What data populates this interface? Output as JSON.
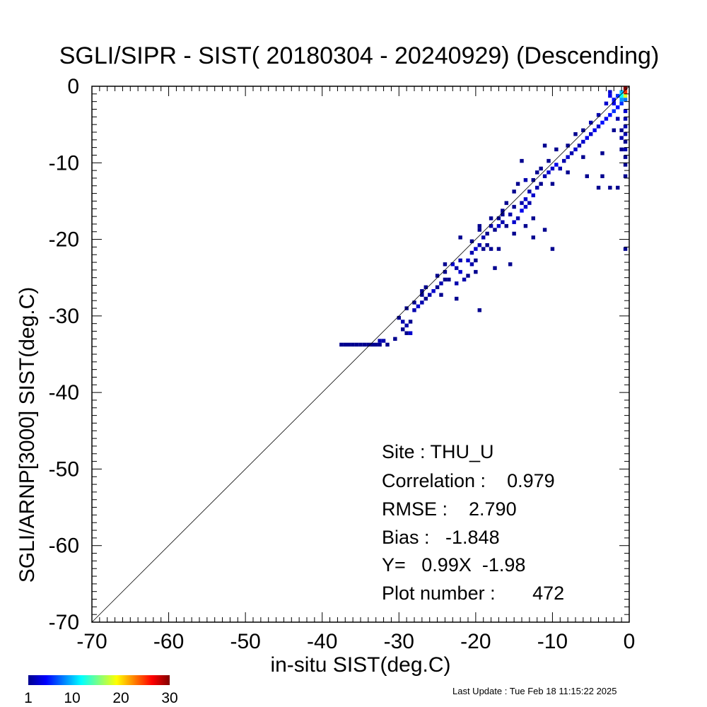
{
  "chart_data": {
    "type": "heatmap",
    "title": "SGLI/SIPR - SIST( 20180304 - 20240929) (Descending)",
    "xlabel": "in-situ SIST(deg.C)",
    "ylabel": "SGLI/ARNP[3000]    SIST(deg.C)",
    "xlim": [
      -70,
      0
    ],
    "ylim": [
      -70,
      0
    ],
    "x_ticks": [
      "-70",
      "-60",
      "-50",
      "-40",
      "-30",
      "-20",
      "-10",
      "0"
    ],
    "y_ticks": [
      "-70",
      "-60",
      "-50",
      "-40",
      "-30",
      "-20",
      "-10",
      "0"
    ],
    "reference_line": {
      "from": [
        -70,
        -70
      ],
      "to": [
        0,
        0
      ]
    },
    "colorbar": {
      "min": 1,
      "max": 30,
      "ticks": [
        "1",
        "10",
        "20",
        "30"
      ],
      "colors": [
        "#00008f",
        "#0000ff",
        "#0080ff",
        "#00ffff",
        "#80ff80",
        "#ffff00",
        "#ff8000",
        "#ff0000",
        "#800000"
      ]
    },
    "bin_size": 0.5,
    "cells": [
      [
        -37.5,
        -33.75,
        1
      ],
      [
        -37,
        -33.75,
        1
      ],
      [
        -36.5,
        -33.75,
        1
      ],
      [
        -36,
        -33.75,
        1
      ],
      [
        -35.5,
        -33.75,
        1
      ],
      [
        -35,
        -33.75,
        1
      ],
      [
        -34.5,
        -33.75,
        1
      ],
      [
        -34,
        -33.75,
        1
      ],
      [
        -33.5,
        -33.75,
        1
      ],
      [
        -33,
        -33.75,
        1
      ],
      [
        -32.5,
        -33.75,
        1
      ],
      [
        -32.5,
        -33.25,
        2
      ],
      [
        -32,
        -33.25,
        2
      ],
      [
        -31.5,
        -33.75,
        1
      ],
      [
        -30.5,
        -33,
        1
      ],
      [
        -30,
        -30.25,
        1
      ],
      [
        -29.5,
        -30.75,
        2
      ],
      [
        -29.5,
        -31.75,
        1
      ],
      [
        -29,
        -32.25,
        1
      ],
      [
        -28.5,
        -32.25,
        3
      ],
      [
        -29,
        -31.25,
        2
      ],
      [
        -28.5,
        -30.75,
        1
      ],
      [
        -29,
        -29,
        1
      ],
      [
        -28,
        -29.25,
        2
      ],
      [
        -27.5,
        -28.75,
        3
      ],
      [
        -27,
        -28.25,
        2
      ],
      [
        -26.5,
        -27.75,
        1
      ],
      [
        -27,
        -27.25,
        1
      ],
      [
        -26,
        -27.25,
        2
      ],
      [
        -25.5,
        -26.75,
        3
      ],
      [
        -25,
        -26.25,
        1
      ],
      [
        -28,
        -28.25,
        1
      ],
      [
        -27,
        -26.75,
        1
      ],
      [
        -26.5,
        -26.25,
        1
      ],
      [
        -24.5,
        -25.75,
        2
      ],
      [
        -24,
        -25.25,
        1
      ],
      [
        -25,
        -24.75,
        1
      ],
      [
        -24,
        -24.25,
        1
      ],
      [
        -23,
        -23.25,
        3
      ],
      [
        -22.5,
        -23.75,
        2
      ],
      [
        -22,
        -24.25,
        3
      ],
      [
        -21.5,
        -25.25,
        2
      ],
      [
        -21,
        -24.75,
        1
      ],
      [
        -22.5,
        -25.75,
        2
      ],
      [
        -23.5,
        -25.25,
        1
      ],
      [
        -22,
        -22.75,
        2
      ],
      [
        -21,
        -22.75,
        3
      ],
      [
        -20.5,
        -23.25,
        2
      ],
      [
        -20,
        -24.25,
        1
      ],
      [
        -20.5,
        -21.75,
        2
      ],
      [
        -20,
        -21.25,
        3
      ],
      [
        -19.5,
        -20.75,
        2
      ],
      [
        -19,
        -21.25,
        1
      ],
      [
        -18.5,
        -20.75,
        1
      ],
      [
        -20.5,
        -20.25,
        1
      ],
      [
        -19,
        -19.75,
        2
      ],
      [
        -18.5,
        -19.25,
        1
      ],
      [
        -19.5,
        -18.75,
        1
      ],
      [
        -18,
        -18.25,
        2
      ],
      [
        -17.5,
        -18.75,
        1
      ],
      [
        -17,
        -18.25,
        3
      ],
      [
        -16.5,
        -17.75,
        2
      ],
      [
        -16,
        -18.25,
        1
      ],
      [
        -17,
        -17.25,
        1
      ],
      [
        -16.5,
        -16.75,
        1
      ],
      [
        -15.5,
        -16.75,
        2
      ],
      [
        -15,
        -17.75,
        3
      ],
      [
        -14.5,
        -17.25,
        2
      ],
      [
        -14,
        -16.25,
        4
      ],
      [
        -13.5,
        -15.75,
        3
      ],
      [
        -13,
        -15.25,
        2
      ],
      [
        -14,
        -15.25,
        2
      ],
      [
        -15,
        -15.75,
        1
      ],
      [
        -13.5,
        -14.75,
        3
      ],
      [
        -12.5,
        -14.25,
        3
      ],
      [
        -13,
        -13.75,
        2
      ],
      [
        -12,
        -13.25,
        2
      ],
      [
        -11.5,
        -12.75,
        1
      ],
      [
        -12.5,
        -12.25,
        1
      ],
      [
        -11,
        -11.75,
        2
      ],
      [
        -10.5,
        -11.25,
        3
      ],
      [
        -10,
        -10.75,
        3
      ],
      [
        -9.5,
        -10.25,
        4
      ],
      [
        -9,
        -10.75,
        2
      ],
      [
        -8.5,
        -9.75,
        2
      ],
      [
        -8,
        -9.25,
        3
      ],
      [
        -7.5,
        -8.75,
        2
      ],
      [
        -7,
        -8.25,
        3
      ],
      [
        -6.5,
        -7.75,
        2
      ],
      [
        -6,
        -7.25,
        3
      ],
      [
        -5.5,
        -6.75,
        4
      ],
      [
        -5,
        -6.25,
        3
      ],
      [
        -4.5,
        -5.75,
        4
      ],
      [
        -4,
        -5.25,
        3
      ],
      [
        -3.5,
        -4.75,
        5
      ],
      [
        -3,
        -4.25,
        4
      ],
      [
        -2.5,
        -3.75,
        5
      ],
      [
        -2,
        -3.25,
        6
      ],
      [
        -1.5,
        -2.75,
        5
      ],
      [
        -1,
        -2.25,
        6
      ],
      [
        -0.5,
        -1.75,
        8
      ],
      [
        -1.5,
        -1.25,
        6
      ],
      [
        -1,
        -0.75,
        10
      ],
      [
        -0.5,
        -0.25,
        30
      ],
      [
        -0.5,
        -0.75,
        25
      ],
      [
        -0.5,
        -1.25,
        18
      ],
      [
        -1,
        -1.25,
        12
      ],
      [
        -2.5,
        -1.25,
        4
      ],
      [
        -3,
        -2.25,
        3
      ],
      [
        -2,
        -2.25,
        4
      ],
      [
        -4,
        -3.75,
        2
      ],
      [
        -5,
        -4.75,
        2
      ],
      [
        -6,
        -5.75,
        1
      ],
      [
        -7,
        -6.25,
        1
      ],
      [
        -8,
        -7.75,
        1
      ],
      [
        -9.5,
        -8.25,
        1
      ],
      [
        -10.5,
        -9.75,
        1
      ],
      [
        -11.5,
        -10.75,
        1
      ],
      [
        -12,
        -11.25,
        1
      ],
      [
        -13.5,
        -12.25,
        2
      ],
      [
        -15,
        -13.75,
        1
      ],
      [
        -16,
        -15.25,
        1
      ],
      [
        -18,
        -17.25,
        1
      ],
      [
        -14,
        -9.75,
        1
      ],
      [
        -11,
        -7.75,
        1
      ],
      [
        -10,
        -12.75,
        1
      ],
      [
        -8,
        -11.25,
        1
      ],
      [
        -14.5,
        -12.75,
        1
      ],
      [
        -16.5,
        -16.25,
        1
      ],
      [
        -15,
        -19.25,
        1
      ],
      [
        -13.5,
        -18.25,
        1
      ],
      [
        -11,
        -18.75,
        1
      ],
      [
        -12.5,
        -17.25,
        1
      ],
      [
        -19.5,
        -18.25,
        1
      ],
      [
        -17,
        -21.25,
        1
      ],
      [
        -18,
        -21.25,
        1
      ],
      [
        -20,
        -22.75,
        1
      ],
      [
        -22,
        -19.75,
        1
      ],
      [
        -24,
        -23.25,
        1
      ],
      [
        -24.5,
        -27.25,
        1
      ],
      [
        -22.5,
        -27.75,
        1
      ],
      [
        -19.5,
        -29.25,
        1
      ],
      [
        -17.5,
        -23.75,
        1
      ],
      [
        -15.5,
        -23.25,
        1
      ],
      [
        -12.5,
        -19.75,
        1
      ],
      [
        -10,
        -21.25,
        1
      ],
      [
        -5.5,
        -11.75,
        1
      ],
      [
        -3.5,
        -11.75,
        1
      ],
      [
        -3.5,
        -8.75,
        1
      ],
      [
        -6,
        -9.25,
        1
      ],
      [
        -4,
        -13.25,
        1
      ],
      [
        -2.5,
        -13.25,
        1
      ],
      [
        -1.5,
        -13.25,
        1
      ],
      [
        -0.5,
        -3.25,
        3
      ],
      [
        -0.5,
        -4.25,
        2
      ],
      [
        -0.5,
        -5.25,
        2
      ],
      [
        -0.5,
        -6.25,
        2
      ],
      [
        -0.5,
        -7.25,
        1
      ],
      [
        -0.5,
        -8.25,
        2
      ],
      [
        -0.5,
        -9.25,
        1
      ],
      [
        -0.5,
        -10.25,
        1
      ],
      [
        -0.5,
        -11.75,
        1
      ],
      [
        -0.5,
        -21.25,
        1
      ],
      [
        -1,
        -5.75,
        1
      ],
      [
        -1,
        -6.75,
        2
      ],
      [
        -1,
        -8.25,
        1
      ],
      [
        -1.5,
        -4.25,
        2
      ],
      [
        -2,
        -5.75,
        1
      ],
      [
        -2.5,
        -0.75,
        3
      ],
      [
        -2,
        -1.75,
        5
      ],
      [
        -1,
        -1.75,
        9
      ]
    ],
    "stats": {
      "site": "Site : THU_U",
      "correlation": "Correlation :    0.979",
      "rmse": "RMSE :    2.790",
      "bias": "Bias :   -1.848",
      "fit": "Y=   0.99X  -1.98",
      "plot_number": "Plot number :       472"
    }
  },
  "footer": {
    "last_update": "Last Update : Tue Feb 18 11:15:22 2025"
  }
}
